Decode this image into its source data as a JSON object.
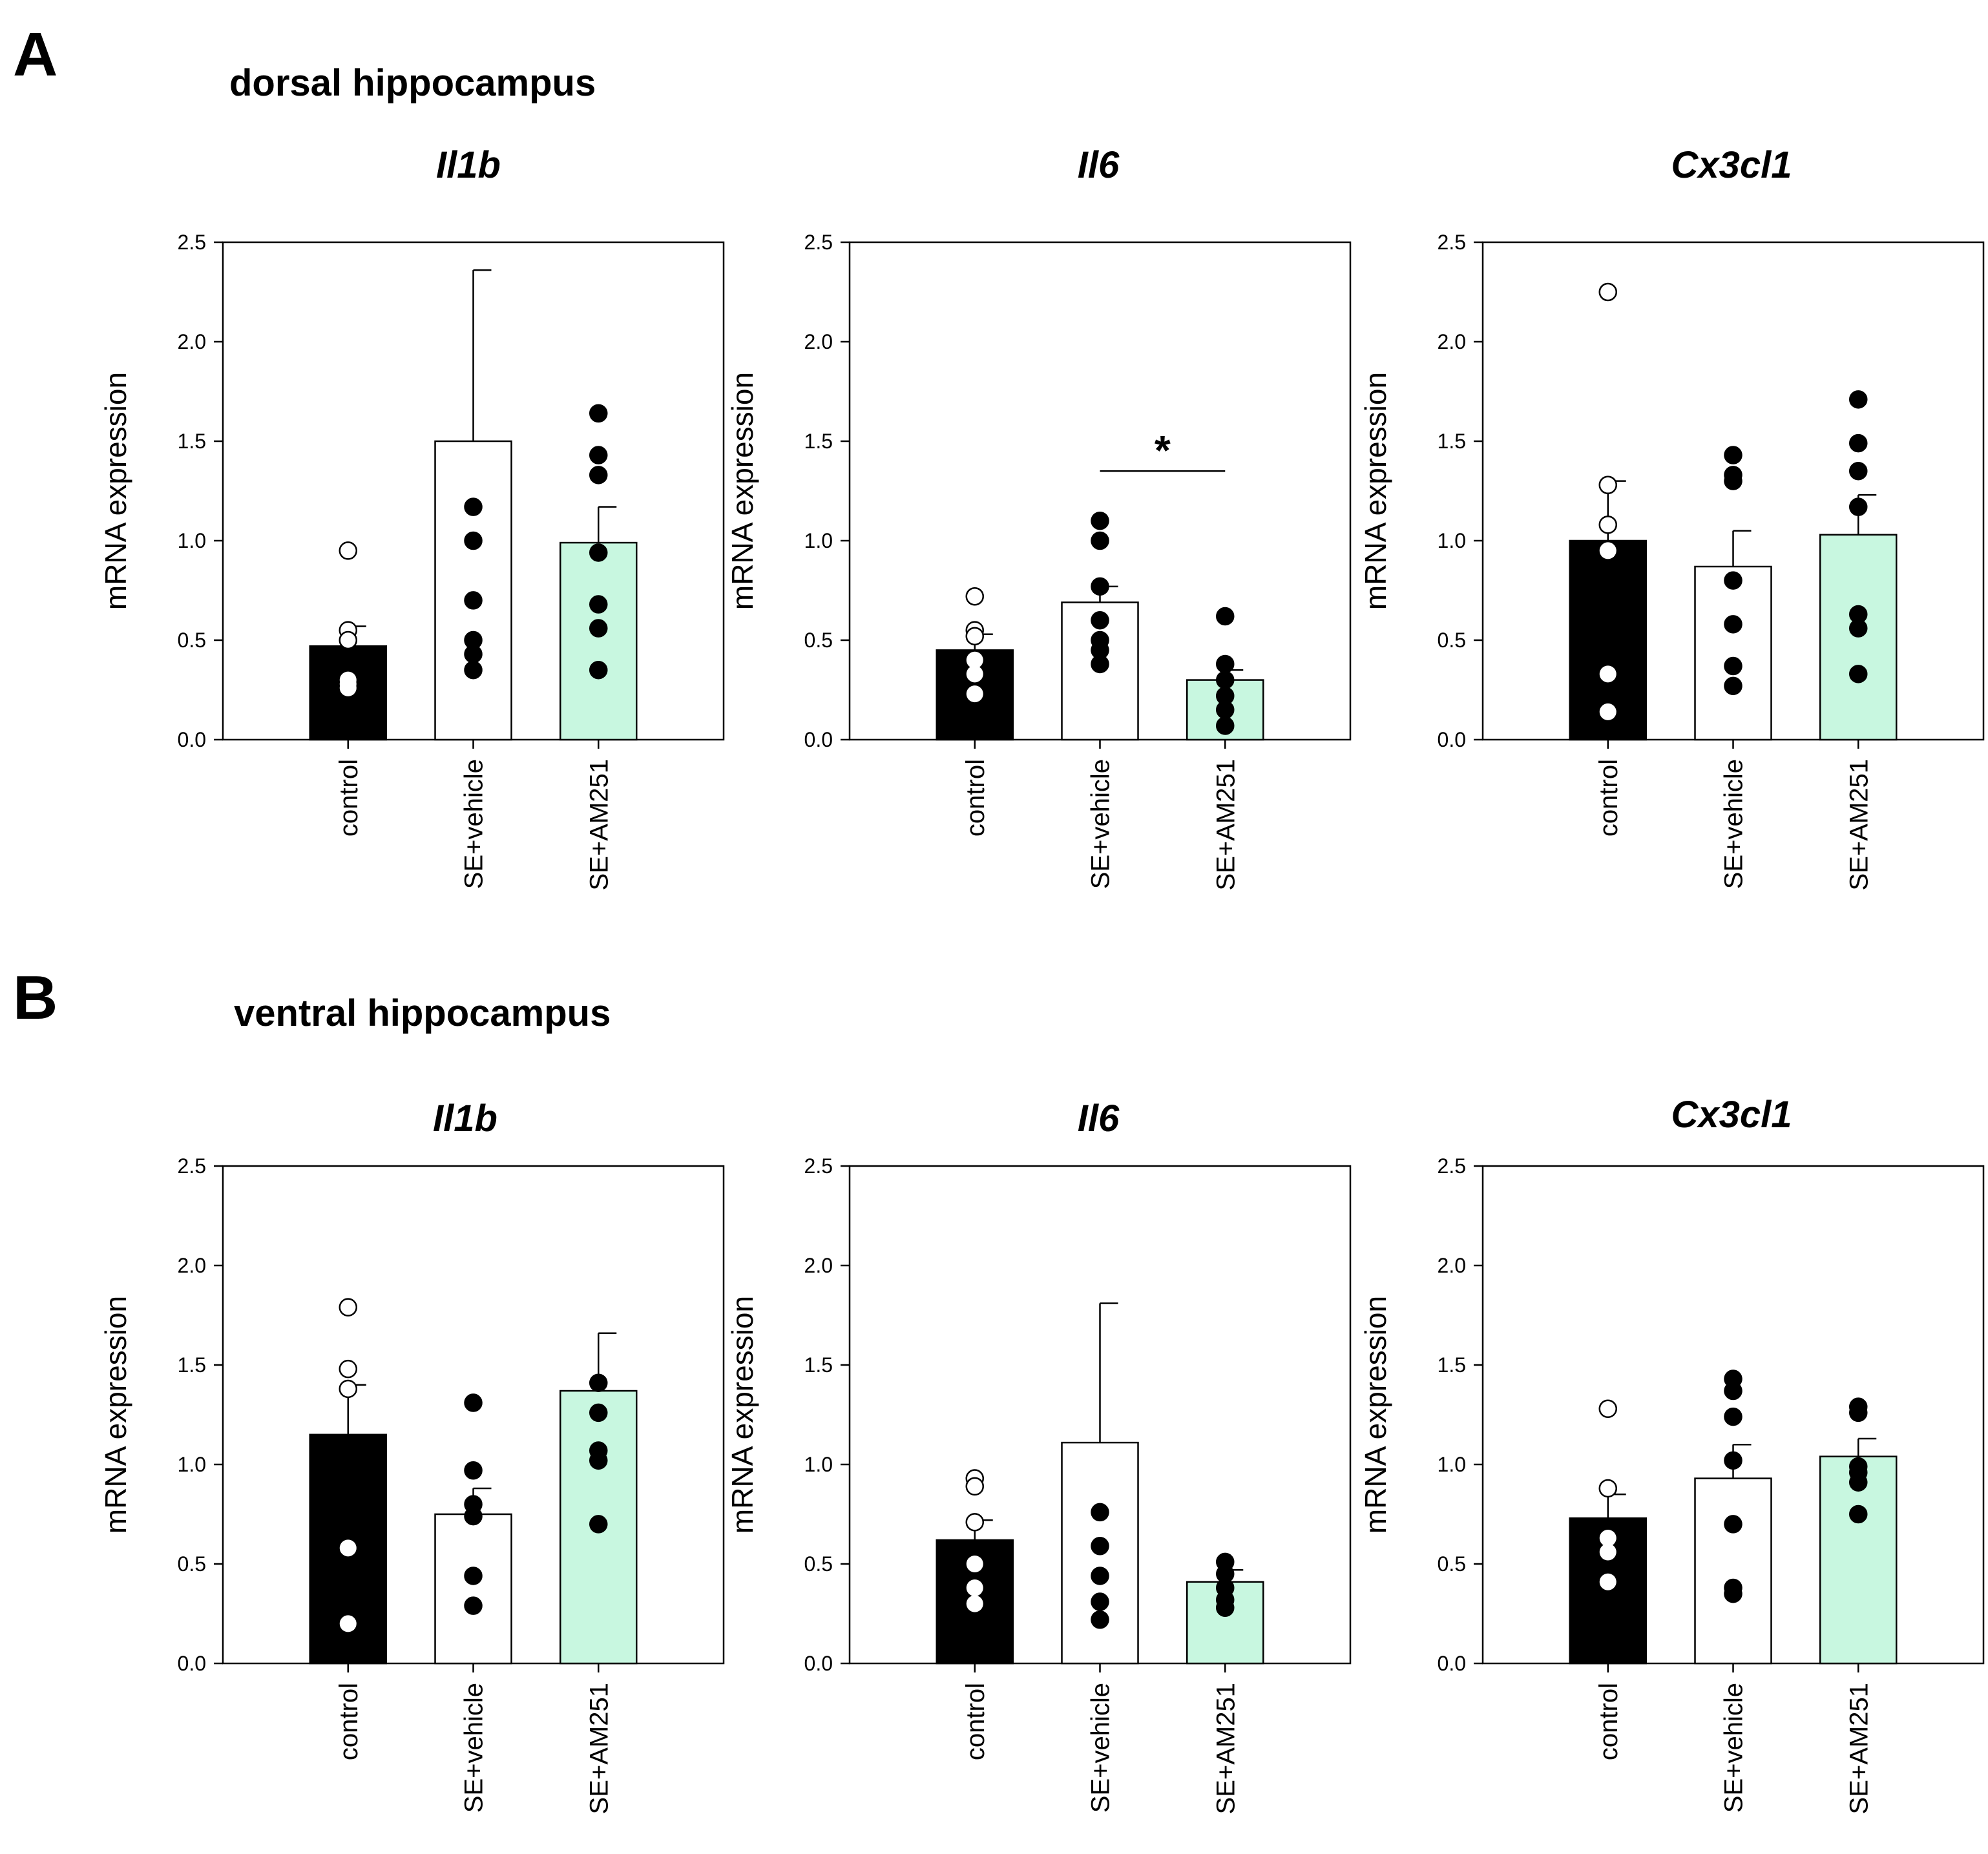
{
  "panels": [
    {
      "letter": "A",
      "heading": "dorsal hippocampus"
    },
    {
      "letter": "B",
      "heading": "ventral hippocampus"
    }
  ],
  "colors": {
    "control": "#000000",
    "vehicle": "#ffffff",
    "am251": "#c8f7e0",
    "axis": "#000000"
  },
  "chart_data": [
    {
      "type": "bar",
      "panel": "A",
      "title": "Il1b",
      "categories": [
        "control",
        "SE+vehicle",
        "SE+AM251"
      ],
      "values": [
        0.47,
        1.5,
        0.99
      ],
      "errors": [
        0.1,
        0.86,
        0.18
      ],
      "points": [
        [
          0.95,
          0.55,
          0.5,
          0.3,
          0.28,
          0.26
        ],
        [
          1.17,
          1.0,
          0.7,
          0.5,
          0.43,
          0.35
        ],
        [
          1.64,
          1.43,
          1.33,
          0.94,
          0.68,
          0.56,
          0.35
        ]
      ],
      "ylabel": "mRNA expression",
      "xlabel": "",
      "ylim": [
        0,
        2.5
      ],
      "yticks": [
        "0.0",
        "0.5",
        "1.0",
        "1.5",
        "2.0",
        "2.5"
      ]
    },
    {
      "type": "bar",
      "panel": "A",
      "title": "Il6",
      "categories": [
        "control",
        "SE+vehicle",
        "SE+AM251"
      ],
      "values": [
        0.45,
        0.69,
        0.3
      ],
      "errors": [
        0.08,
        0.08,
        0.05
      ],
      "points": [
        [
          0.72,
          0.55,
          0.52,
          0.4,
          0.33,
          0.23
        ],
        [
          1.1,
          1.0,
          0.77,
          0.6,
          0.5,
          0.45,
          0.38
        ],
        [
          0.62,
          0.38,
          0.3,
          0.22,
          0.15,
          0.07
        ]
      ],
      "ylabel": "mRNA expression",
      "xlabel": "",
      "ylim": [
        0,
        2.5
      ],
      "yticks": [
        "0.0",
        "0.5",
        "1.0",
        "1.5",
        "2.0",
        "2.5"
      ],
      "significance": {
        "label": "*",
        "from": 1,
        "to": 2,
        "y": 1.35
      }
    },
    {
      "type": "bar",
      "panel": "A",
      "title": "Cx3cl1",
      "categories": [
        "control",
        "SE+vehicle",
        "SE+AM251"
      ],
      "values": [
        1.0,
        0.87,
        1.03
      ],
      "errors": [
        0.3,
        0.18,
        0.2
      ],
      "points": [
        [
          2.25,
          1.28,
          1.08,
          0.95,
          0.33,
          0.14
        ],
        [
          1.43,
          1.33,
          1.3,
          0.8,
          0.58,
          0.37,
          0.27
        ],
        [
          1.71,
          1.49,
          1.35,
          1.17,
          0.63,
          0.56,
          0.33
        ]
      ],
      "ylabel": "mRNA expression",
      "xlabel": "",
      "ylim": [
        0,
        2.5
      ],
      "yticks": [
        "0.0",
        "0.5",
        "1.0",
        "1.5",
        "2.0",
        "2.5"
      ]
    },
    {
      "type": "bar",
      "panel": "B",
      "title": "Il1b",
      "categories": [
        "control",
        "SE+vehicle",
        "SE+AM251"
      ],
      "values": [
        1.15,
        0.75,
        1.37
      ],
      "errors": [
        0.25,
        0.13,
        0.29
      ],
      "points": [
        [
          1.79,
          1.48,
          1.38,
          0.58,
          0.2
        ],
        [
          1.31,
          0.97,
          0.8,
          0.74,
          0.44,
          0.29
        ],
        [
          1.41,
          1.26,
          1.07,
          1.02,
          0.7
        ]
      ],
      "ylabel": "mRNA expression",
      "xlabel": "",
      "ylim": [
        0,
        2.5
      ],
      "yticks": [
        "0.0",
        "0.5",
        "1.0",
        "1.5",
        "2.0",
        "2.5"
      ]
    },
    {
      "type": "bar",
      "panel": "B",
      "title": "Il6",
      "categories": [
        "control",
        "SE+vehicle",
        "SE+AM251"
      ],
      "values": [
        0.62,
        1.11,
        0.41
      ],
      "errors": [
        0.1,
        0.7,
        0.06
      ],
      "points": [
        [
          0.93,
          0.89,
          0.71,
          0.5,
          0.38,
          0.3
        ],
        [
          0.76,
          0.59,
          0.44,
          0.31,
          0.22
        ],
        [
          0.51,
          0.45,
          0.38,
          0.32,
          0.28
        ]
      ],
      "ylabel": "mRNA expression",
      "xlabel": "",
      "ylim": [
        0,
        2.5
      ],
      "yticks": [
        "0.0",
        "0.5",
        "1.0",
        "1.5",
        "2.0",
        "2.5"
      ]
    },
    {
      "type": "bar",
      "panel": "B",
      "title": "Cx3cl1",
      "categories": [
        "control",
        "SE+vehicle",
        "SE+AM251"
      ],
      "values": [
        0.73,
        0.93,
        1.04
      ],
      "errors": [
        0.12,
        0.17,
        0.09
      ],
      "points": [
        [
          1.28,
          0.88,
          0.63,
          0.56,
          0.41
        ],
        [
          1.43,
          1.37,
          1.24,
          1.02,
          0.7,
          0.38,
          0.35
        ],
        [
          1.29,
          1.26,
          0.99,
          0.96,
          0.91,
          0.75
        ]
      ],
      "ylabel": "mRNA expression",
      "xlabel": "",
      "ylim": [
        0,
        2.5
      ],
      "yticks": [
        "0.0",
        "0.5",
        "1.0",
        "1.5",
        "2.0",
        "2.5"
      ]
    }
  ]
}
